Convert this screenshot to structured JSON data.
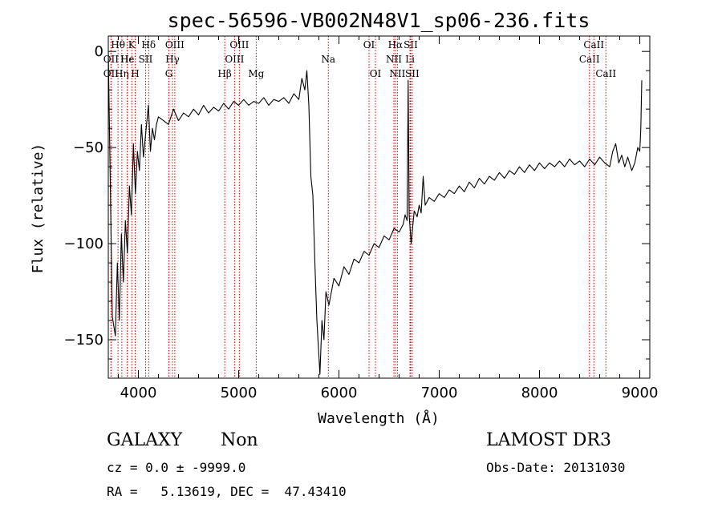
{
  "chart_data": {
    "type": "line",
    "title": "spec-56596-VB002N48V1_sp06-236.fits",
    "xlabel": "Wavelength (Å)",
    "ylabel": "Flux (relative)",
    "xlim": [
      3700,
      9100
    ],
    "ylim": [
      -170,
      8
    ],
    "xticks": [
      4000,
      5000,
      6000,
      7000,
      8000,
      9000
    ],
    "yticks": [
      0,
      -50,
      -100,
      -150
    ],
    "grid": false,
    "series": [
      {
        "color": "#000000",
        "points": [
          [
            3700,
            0
          ],
          [
            3740,
            -138
          ],
          [
            3770,
            -148
          ],
          [
            3790,
            -110
          ],
          [
            3810,
            -140
          ],
          [
            3830,
            -95
          ],
          [
            3850,
            -120
          ],
          [
            3870,
            -88
          ],
          [
            3890,
            -105
          ],
          [
            3910,
            -70
          ],
          [
            3930,
            -85
          ],
          [
            3950,
            -48
          ],
          [
            3970,
            -74
          ],
          [
            3990,
            -52
          ],
          [
            4010,
            -62
          ],
          [
            4030,
            -38
          ],
          [
            4050,
            -55
          ],
          [
            4070,
            -44
          ],
          [
            4100,
            -28
          ],
          [
            4120,
            -52
          ],
          [
            4140,
            -40
          ],
          [
            4160,
            -46
          ],
          [
            4180,
            -38
          ],
          [
            4200,
            -34
          ],
          [
            4250,
            -36
          ],
          [
            4300,
            -38
          ],
          [
            4350,
            -30
          ],
          [
            4400,
            -36
          ],
          [
            4450,
            -32
          ],
          [
            4500,
            -34
          ],
          [
            4550,
            -30
          ],
          [
            4600,
            -33
          ],
          [
            4650,
            -28
          ],
          [
            4700,
            -32
          ],
          [
            4750,
            -29
          ],
          [
            4800,
            -31
          ],
          [
            4850,
            -27
          ],
          [
            4900,
            -30
          ],
          [
            4950,
            -26
          ],
          [
            5000,
            -28
          ],
          [
            5050,
            -25
          ],
          [
            5100,
            -28
          ],
          [
            5150,
            -26
          ],
          [
            5200,
            -27
          ],
          [
            5250,
            -24
          ],
          [
            5300,
            -28
          ],
          [
            5350,
            -25
          ],
          [
            5400,
            -26
          ],
          [
            5450,
            -24
          ],
          [
            5500,
            -27
          ],
          [
            5550,
            -22
          ],
          [
            5600,
            -25
          ],
          [
            5630,
            -14
          ],
          [
            5660,
            -20
          ],
          [
            5680,
            -10
          ],
          [
            5700,
            -28
          ],
          [
            5720,
            -65
          ],
          [
            5740,
            -75
          ],
          [
            5760,
            -110
          ],
          [
            5780,
            -140
          ],
          [
            5800,
            -158
          ],
          [
            5810,
            -168
          ],
          [
            5830,
            -140
          ],
          [
            5850,
            -150
          ],
          [
            5870,
            -125
          ],
          [
            5900,
            -132
          ],
          [
            5950,
            -118
          ],
          [
            6000,
            -122
          ],
          [
            6050,
            -112
          ],
          [
            6100,
            -116
          ],
          [
            6150,
            -108
          ],
          [
            6200,
            -110
          ],
          [
            6250,
            -104
          ],
          [
            6300,
            -106
          ],
          [
            6350,
            -100
          ],
          [
            6400,
            -102
          ],
          [
            6450,
            -96
          ],
          [
            6500,
            -98
          ],
          [
            6550,
            -92
          ],
          [
            6600,
            -94
          ],
          [
            6640,
            -90
          ],
          [
            6660,
            -85
          ],
          [
            6680,
            -88
          ],
          [
            6690,
            -15
          ],
          [
            6700,
            -85
          ],
          [
            6720,
            -100
          ],
          [
            6750,
            -83
          ],
          [
            6780,
            -86
          ],
          [
            6800,
            -80
          ],
          [
            6820,
            -84
          ],
          [
            6840,
            -65
          ],
          [
            6860,
            -80
          ],
          [
            6900,
            -76
          ],
          [
            6950,
            -78
          ],
          [
            7000,
            -74
          ],
          [
            7050,
            -76
          ],
          [
            7100,
            -72
          ],
          [
            7150,
            -74
          ],
          [
            7200,
            -70
          ],
          [
            7250,
            -73
          ],
          [
            7300,
            -68
          ],
          [
            7350,
            -71
          ],
          [
            7400,
            -66
          ],
          [
            7450,
            -69
          ],
          [
            7500,
            -65
          ],
          [
            7550,
            -67
          ],
          [
            7600,
            -63
          ],
          [
            7650,
            -66
          ],
          [
            7700,
            -62
          ],
          [
            7750,
            -64
          ],
          [
            7800,
            -60
          ],
          [
            7850,
            -63
          ],
          [
            7900,
            -59
          ],
          [
            7950,
            -62
          ],
          [
            8000,
            -58
          ],
          [
            8050,
            -61
          ],
          [
            8100,
            -58
          ],
          [
            8150,
            -60
          ],
          [
            8200,
            -57
          ],
          [
            8250,
            -60
          ],
          [
            8300,
            -56
          ],
          [
            8350,
            -59
          ],
          [
            8400,
            -57
          ],
          [
            8450,
            -60
          ],
          [
            8500,
            -56
          ],
          [
            8550,
            -59
          ],
          [
            8600,
            -55
          ],
          [
            8650,
            -58
          ],
          [
            8700,
            -60
          ],
          [
            8730,
            -52
          ],
          [
            8760,
            -48
          ],
          [
            8790,
            -58
          ],
          [
            8820,
            -54
          ],
          [
            8850,
            -60
          ],
          [
            8880,
            -55
          ],
          [
            8920,
            -62
          ],
          [
            8950,
            -58
          ],
          [
            8980,
            -50
          ],
          [
            9000,
            -52
          ],
          [
            9010,
            -40
          ],
          [
            9020,
            -15
          ]
        ]
      }
    ],
    "line_markers": [
      {
        "label": "OII",
        "x": 3727,
        "row": 2
      },
      {
        "label": "OII",
        "x": 3727,
        "row": 1
      },
      {
        "label": "Hθ",
        "x": 3797,
        "row": 0
      },
      {
        "label": "Hη",
        "x": 3835,
        "row": 2
      },
      {
        "label": "Hε",
        "x": 3889,
        "row": 1
      },
      {
        "label": "He",
        "x": 3889,
        "row": 1
      },
      {
        "label": "K",
        "x": 3934,
        "row": 0
      },
      {
        "label": "H",
        "x": 3968,
        "row": 2
      },
      {
        "label": "SII",
        "x": 4072,
        "row": 1
      },
      {
        "label": "Hδ",
        "x": 4102,
        "row": 0
      },
      {
        "label": "G",
        "x": 4304,
        "row": 2
      },
      {
        "label": "Hγ",
        "x": 4340,
        "row": 1
      },
      {
        "label": "OIII",
        "x": 4363,
        "row": 0
      },
      {
        "label": "Hβ",
        "x": 4861,
        "row": 2
      },
      {
        "label": "OIII",
        "x": 4959,
        "row": 1
      },
      {
        "label": "OIII",
        "x": 5007,
        "row": 0
      },
      {
        "label": "Mg",
        "x": 5175,
        "row": 2
      },
      {
        "label": "Na",
        "x": 5894,
        "row": 1
      },
      {
        "label": "OI",
        "x": 6300,
        "row": 0
      },
      {
        "label": "OI",
        "x": 6364,
        "row": 2
      },
      {
        "label": "NII",
        "x": 6548,
        "row": 1
      },
      {
        "label": "Hα",
        "x": 6563,
        "row": 0
      },
      {
        "label": "NII",
        "x": 6583,
        "row": 2
      },
      {
        "label": "Li",
        "x": 6708,
        "row": 1
      },
      {
        "label": "SII",
        "x": 6716,
        "row": 0
      },
      {
        "label": "SII",
        "x": 6731,
        "row": 2
      },
      {
        "label": "CaII",
        "x": 8498,
        "row": 1
      },
      {
        "label": "CaII",
        "x": 8542,
        "row": 0
      },
      {
        "label": "CaII",
        "x": 8662,
        "row": 2
      }
    ]
  },
  "info": {
    "object_class": "GALAXY",
    "subclass": "Non",
    "cz_line": "cz = 0.0 ± -9999.0",
    "ra_dec_line": "RA =   5.13619, DEC =  47.43410",
    "survey": "LAMOST DR3",
    "obs_date": "Obs-Date: 20131030"
  },
  "colors": {
    "spectrum": "#000000",
    "marker_line": "#cc0000",
    "background": "#ffffff"
  }
}
